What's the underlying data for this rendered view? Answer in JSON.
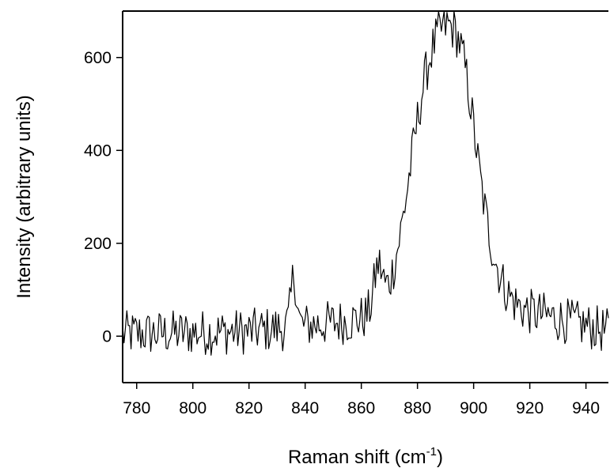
{
  "chart_data": {
    "type": "line",
    "title": "",
    "xlabel": "Raman shift (cm",
    "xlabel_superscript": "-1",
    "xlabel_suffix": ")",
    "ylabel": "Intensity (arbitrary units)",
    "xlim": [
      775,
      948
    ],
    "ylim": [
      -100,
      700
    ],
    "x_ticks": [
      780,
      800,
      820,
      840,
      860,
      880,
      900,
      920,
      940
    ],
    "x_tick_labels": [
      "780",
      "800",
      "820",
      "840",
      "860",
      "880",
      "900",
      "920",
      "940"
    ],
    "y_ticks": [
      0,
      200,
      400,
      600
    ],
    "y_tick_labels": [
      "0",
      "200",
      "400",
      "600"
    ],
    "grid": false,
    "line_color": "#000000",
    "spectrum": {
      "x_start": 775,
      "x_end": 948,
      "x_step": 0.5,
      "peaks": [
        {
          "center": 890,
          "height": 590,
          "width": 9.5
        },
        {
          "center": 880,
          "height": 80,
          "width": 5
        },
        {
          "center": 897,
          "height": 70,
          "width": 4
        },
        {
          "center": 866,
          "height": 90,
          "width": 1.5
        },
        {
          "center": 836,
          "height": 110,
          "width": 1
        }
      ],
      "baseline": [
        {
          "x": 775,
          "y": 5
        },
        {
          "x": 820,
          "y": 10
        },
        {
          "x": 860,
          "y": 35
        },
        {
          "x": 905,
          "y": 60
        },
        {
          "x": 925,
          "y": 45
        },
        {
          "x": 948,
          "y": 10
        }
      ],
      "noise_amplitude": 50
    }
  }
}
